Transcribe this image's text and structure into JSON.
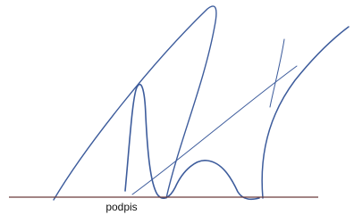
{
  "label": "podpis"
}
